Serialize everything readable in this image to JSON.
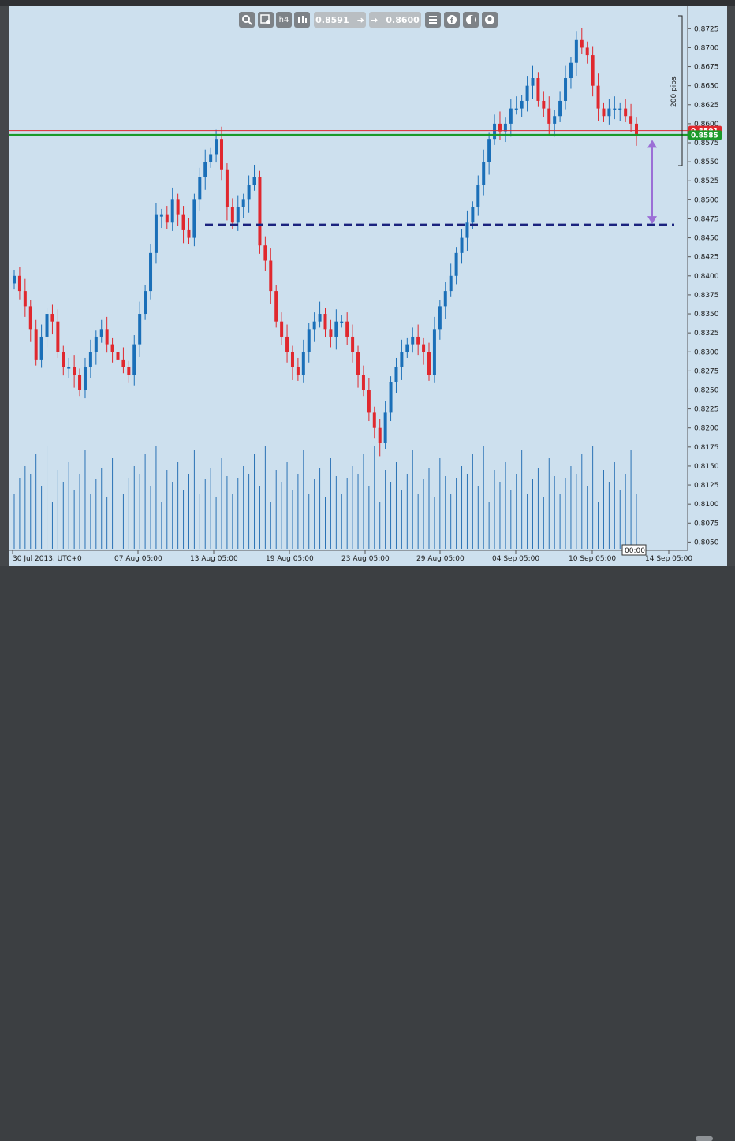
{
  "toolbar": {
    "bid_value": "0.8591",
    "ask_value": "0.8600",
    "icons": [
      "zoom-icon",
      "chart-settings-icon",
      "timeframe-h4-icon",
      "candles-icon",
      "buy-arrow-icon",
      "sell-arrow-icon",
      "list-icon",
      "facebook-icon",
      "toggle-icon",
      "account-icon"
    ],
    "timeframe_label": "h4"
  },
  "chart_data": {
    "type": "candlestick",
    "symbol_timezone_label": "30 Jul 2013, UTC+0",
    "x_tick_labels": [
      "30 Jul 2013, UTC+0",
      "07 Aug 05:00",
      "13 Aug 05:00",
      "19 Aug 05:00",
      "23 Aug 05:00",
      "29 Aug 05:00",
      "04 Sep 05:00",
      "10 Sep 05:00",
      "14 Sep 05:00"
    ],
    "y_ticks": [
      "0.8725",
      "0.8700",
      "0.8675",
      "0.8650",
      "0.8625",
      "0.8600",
      "0.8575",
      "0.8550",
      "0.8525",
      "0.8500",
      "0.8475",
      "0.8450",
      "0.8425",
      "0.8400",
      "0.8375",
      "0.8350",
      "0.8325",
      "0.8300",
      "0.8275",
      "0.8250",
      "0.8225",
      "0.8200",
      "0.8175",
      "0.8150",
      "0.8125",
      "0.8100",
      "0.8075",
      "0.8050"
    ],
    "ylim": [
      0.8039,
      0.8744
    ],
    "closes": [
      0.84,
      0.838,
      0.836,
      0.833,
      0.829,
      0.832,
      0.835,
      0.834,
      0.83,
      0.828,
      0.828,
      0.827,
      0.825,
      0.828,
      0.83,
      0.832,
      0.833,
      0.831,
      0.83,
      0.829,
      0.828,
      0.827,
      0.831,
      0.835,
      0.838,
      0.843,
      0.848,
      0.848,
      0.847,
      0.85,
      0.848,
      0.846,
      0.845,
      0.85,
      0.853,
      0.855,
      0.856,
      0.858,
      0.854,
      0.849,
      0.847,
      0.849,
      0.85,
      0.852,
      0.853,
      0.844,
      0.842,
      0.838,
      0.834,
      0.832,
      0.83,
      0.828,
      0.827,
      0.83,
      0.833,
      0.834,
      0.835,
      0.833,
      0.832,
      0.834,
      0.834,
      0.832,
      0.83,
      0.827,
      0.825,
      0.822,
      0.82,
      0.818,
      0.822,
      0.826,
      0.828,
      0.83,
      0.831,
      0.832,
      0.831,
      0.83,
      0.827,
      0.833,
      0.836,
      0.838,
      0.84,
      0.843,
      0.845,
      0.847,
      0.849,
      0.852,
      0.855,
      0.858,
      0.86,
      0.859,
      0.86,
      0.862,
      0.862,
      0.863,
      0.865,
      0.866,
      0.863,
      0.862,
      0.86,
      0.861,
      0.863,
      0.866,
      0.868,
      0.871,
      0.87,
      0.869,
      0.865,
      0.862,
      0.861,
      0.862,
      0.862,
      0.862,
      0.861,
      0.86,
      0.8585
    ],
    "highlighted_levels": [
      {
        "label": "0.8591",
        "value": 0.8591,
        "color": "#e0282e"
      },
      {
        "label": "0.8585",
        "value": 0.8585,
        "color": "#1a9a2a"
      }
    ],
    "dashed_level": 0.8467,
    "measure_label": "200 pips",
    "volume_axis_label": "00:00",
    "colors": {
      "up": "#1a6fb8",
      "down": "#e0282e",
      "volume": "#2a72b5",
      "dashed": "#1a237e",
      "arrow": "#9b6fd6"
    }
  }
}
